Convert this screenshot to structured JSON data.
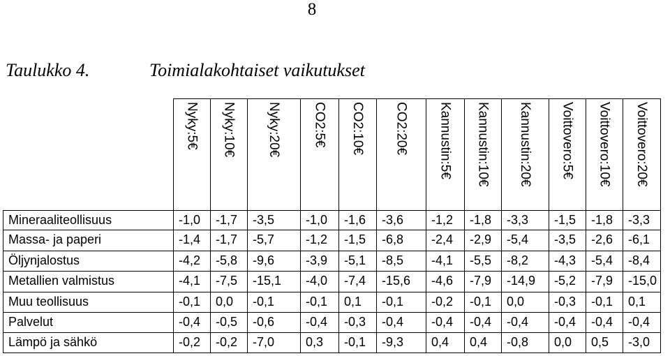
{
  "page_number": "8",
  "caption": {
    "label": "Taulukko 4.",
    "title": "Toimialakohtaiset vaikutukset"
  },
  "table": {
    "columns": [
      "Nyky:5€",
      "Nyky:10€",
      "Nyky:20€",
      "CO2:5€",
      "CO2:10€",
      "CO2:20€",
      "Kannustin:5€",
      "Kannustin:10€",
      "Kannustin:20€",
      "Voittovero:5€",
      "Voittovero:10€",
      "Voittovero:20€"
    ],
    "rows": [
      {
        "label": "Mineraaliteollisuus",
        "values": [
          "-1,0",
          "-1,7",
          "-3,5",
          "-1,0",
          "-1,6",
          "-3,6",
          "-1,2",
          "-1,8",
          "-3,3",
          "-1,5",
          "-1,8",
          "-3,3"
        ]
      },
      {
        "label": "Massa- ja paperi",
        "values": [
          "-1,4",
          "-1,7",
          "-5,7",
          "-1,2",
          "-1,5",
          "-6,8",
          "-2,4",
          "-2,9",
          "-5,4",
          "-3,5",
          "-2,6",
          "-6,1"
        ]
      },
      {
        "label": "Öljynjalostus",
        "values": [
          "-4,2",
          "-5,8",
          "-9,6",
          "-3,9",
          "-5,1",
          "-8,5",
          "-4,1",
          "-5,5",
          "-8,2",
          "-4,3",
          "-5,4",
          "-8,4"
        ]
      },
      {
        "label": "Metallien valmistus",
        "values": [
          "-4,1",
          "-7,5",
          "-15,1",
          "-4,0",
          "-7,4",
          "-15,6",
          "-4,6",
          "-7,9",
          "-14,9",
          "-5,2",
          "-7,9",
          "-15,0"
        ]
      },
      {
        "label": "Muu teollisuus",
        "values": [
          "-0,1",
          "0,0",
          "-0,1",
          "-0,1",
          "0,1",
          "-0,1",
          "-0,2",
          "-0,1",
          "0,0",
          "-0,3",
          "-0,1",
          "0,1"
        ]
      },
      {
        "label": "Palvelut",
        "values": [
          "-0,4",
          "-0,5",
          "-0,6",
          "-0,4",
          "-0,3",
          "-0,4",
          "-0,4",
          "-0,4",
          "-0,4",
          "-0,4",
          "-0,4",
          "-0,4"
        ]
      },
      {
        "label": "Lämpö ja sähkö",
        "values": [
          "-0,2",
          "-0,2",
          "-7,0",
          "0,3",
          "-0,1",
          "-9,3",
          "0,4",
          "0,4",
          "-0,8",
          "0,0",
          "0,5",
          "-3,0"
        ]
      }
    ]
  }
}
